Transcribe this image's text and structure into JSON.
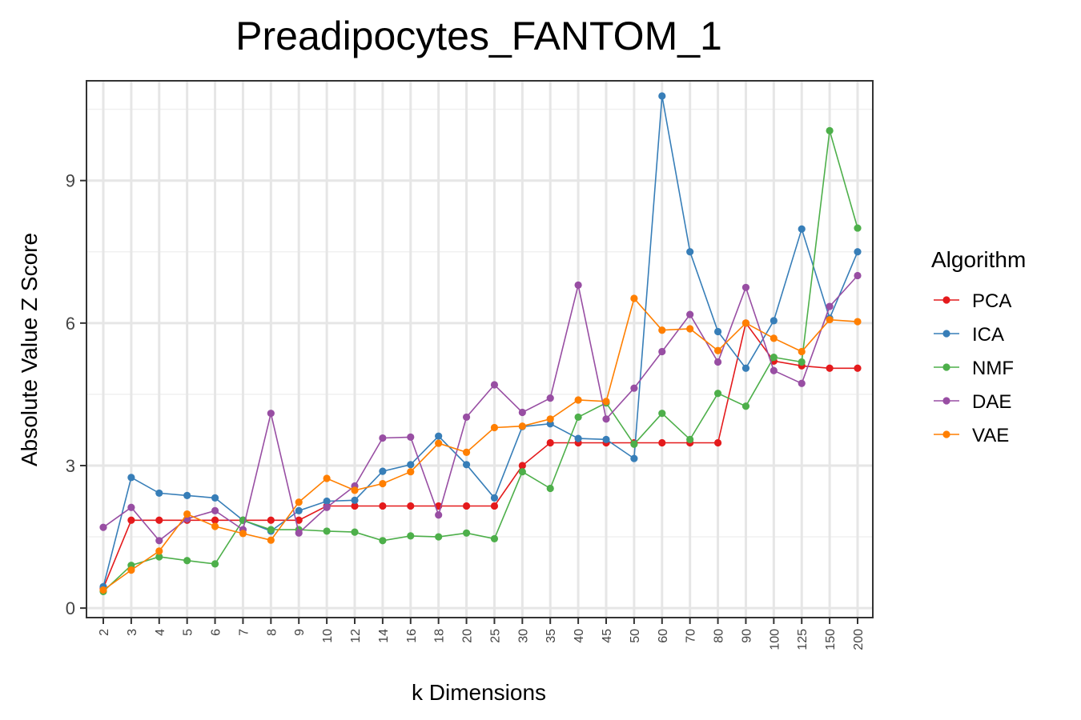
{
  "chart_data": {
    "type": "line",
    "title": "Preadipocytes_FANTOM_1",
    "xlabel": "k Dimensions",
    "ylabel": "Absolute Value Z Score",
    "categories": [
      "2",
      "3",
      "4",
      "5",
      "6",
      "7",
      "8",
      "9",
      "10",
      "12",
      "14",
      "16",
      "18",
      "20",
      "25",
      "30",
      "35",
      "40",
      "45",
      "50",
      "60",
      "70",
      "80",
      "90",
      "100",
      "125",
      "150",
      "200"
    ],
    "ylim": [
      -0.2,
      11.1
    ],
    "yticks": [
      0,
      3,
      6,
      9
    ],
    "grid": true,
    "legend": {
      "title": "Algorithm",
      "placement": "right"
    },
    "series": [
      {
        "name": "PCA",
        "color": "#e41a1c",
        "values": [
          0.42,
          1.85,
          1.85,
          1.85,
          1.85,
          1.85,
          1.85,
          1.85,
          2.15,
          2.15,
          2.15,
          2.15,
          2.15,
          2.15,
          2.15,
          3.0,
          3.48,
          3.48,
          3.48,
          3.48,
          3.48,
          3.48,
          3.48,
          6.0,
          5.2,
          5.1,
          5.05,
          5.05
        ]
      },
      {
        "name": "ICA",
        "color": "#377eb8",
        "values": [
          0.45,
          2.75,
          2.42,
          2.37,
          2.32,
          1.85,
          1.62,
          2.05,
          2.25,
          2.27,
          2.88,
          3.02,
          3.62,
          3.02,
          2.32,
          3.82,
          3.88,
          3.57,
          3.55,
          3.15,
          10.78,
          7.5,
          5.82,
          5.05,
          6.05,
          7.98,
          6.1,
          7.5
        ]
      },
      {
        "name": "NMF",
        "color": "#4daf4a",
        "values": [
          0.35,
          0.9,
          1.08,
          1.0,
          0.93,
          1.85,
          1.65,
          1.65,
          1.62,
          1.6,
          1.42,
          1.52,
          1.5,
          1.58,
          1.46,
          2.87,
          2.52,
          4.02,
          4.32,
          3.45,
          4.1,
          3.55,
          4.52,
          4.25,
          5.28,
          5.18,
          10.05,
          8.0
        ]
      },
      {
        "name": "DAE",
        "color": "#984ea3",
        "values": [
          1.7,
          2.12,
          1.42,
          1.88,
          2.05,
          1.65,
          4.1,
          1.58,
          2.12,
          2.57,
          3.58,
          3.6,
          1.96,
          4.02,
          4.7,
          4.12,
          4.42,
          6.8,
          3.98,
          4.63,
          5.4,
          6.18,
          5.18,
          6.75,
          5.0,
          4.73,
          6.35,
          7.0
        ]
      },
      {
        "name": "VAE",
        "color": "#ff7f00",
        "values": [
          0.38,
          0.8,
          1.2,
          1.98,
          1.72,
          1.57,
          1.43,
          2.23,
          2.73,
          2.48,
          2.62,
          2.87,
          3.47,
          3.28,
          3.8,
          3.83,
          3.98,
          4.38,
          4.35,
          6.52,
          5.85,
          5.88,
          5.42,
          6.0,
          5.68,
          5.4,
          6.07,
          6.03
        ]
      }
    ]
  }
}
